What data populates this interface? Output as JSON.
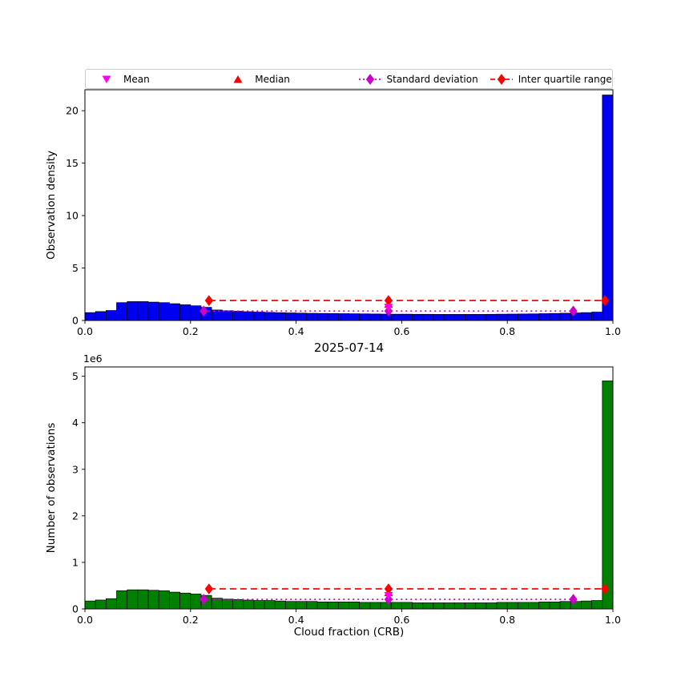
{
  "figure": {
    "title": "2025-07-14",
    "xlabel": "Cloud fraction (CRB)",
    "offset_text": "1e6"
  },
  "legend": {
    "items": [
      {
        "label": "Mean",
        "marker": "triangle-down",
        "color": "#ff00ff",
        "line": "none"
      },
      {
        "label": "Median",
        "marker": "triangle-up",
        "color": "#ff0000",
        "line": "none"
      },
      {
        "label": "Standard deviation",
        "marker": "diamond",
        "color": "#cc00cc",
        "line": "dotted"
      },
      {
        "label": "Inter quartile range",
        "marker": "diamond",
        "color": "#ff0000",
        "line": "dashed"
      }
    ]
  },
  "chart_data": [
    {
      "type": "bar",
      "ylabel": "Observation density",
      "bar_color": "#0000f0",
      "bar_edge_color": "#000000",
      "xlim": [
        0.0,
        1.0
      ],
      "ylim": [
        0,
        22
      ],
      "xticks": [
        0.0,
        0.2,
        0.4,
        0.6,
        0.8,
        1.0
      ],
      "xtick_labels": [
        "0.0",
        "0.2",
        "0.4",
        "0.6",
        "0.8",
        "1.0"
      ],
      "yticks": [
        0,
        5,
        10,
        15,
        20
      ],
      "ytick_labels": [
        "0",
        "5",
        "10",
        "15",
        "20"
      ],
      "bin_start": 0.0,
      "bin_width": 0.02,
      "values": [
        0.75,
        0.85,
        0.95,
        1.7,
        1.8,
        1.8,
        1.75,
        1.7,
        1.6,
        1.5,
        1.4,
        1.25,
        1.0,
        0.93,
        0.88,
        0.84,
        0.8,
        0.77,
        0.74,
        0.72,
        0.7,
        0.68,
        0.67,
        0.66,
        0.65,
        0.64,
        0.63,
        0.62,
        0.61,
        0.6,
        0.6,
        0.59,
        0.59,
        0.58,
        0.58,
        0.58,
        0.58,
        0.58,
        0.59,
        0.6,
        0.61,
        0.62,
        0.63,
        0.65,
        0.67,
        0.69,
        0.72,
        0.75,
        0.8,
        21.5
      ],
      "stats": {
        "mean": {
          "x": 0.575,
          "y": 1.25
        },
        "median": {
          "x": 0.575,
          "y": 1.55
        },
        "std": {
          "x1": 0.225,
          "x2": 0.925,
          "y": 0.9
        },
        "iqr": {
          "x1": 0.235,
          "x2": 0.985,
          "y": 1.9
        }
      }
    },
    {
      "type": "bar",
      "ylabel": "Number of observations",
      "y_unit": "1e6",
      "bar_color": "#008000",
      "bar_edge_color": "#000000",
      "xlim": [
        0.0,
        1.0
      ],
      "ylim": [
        0,
        5.2
      ],
      "xticks": [
        0.0,
        0.2,
        0.4,
        0.6,
        0.8,
        1.0
      ],
      "xtick_labels": [
        "0.0",
        "0.2",
        "0.4",
        "0.6",
        "0.8",
        "1.0"
      ],
      "yticks": [
        0,
        1,
        2,
        3,
        4,
        5
      ],
      "ytick_labels": [
        "0",
        "1",
        "2",
        "3",
        "4",
        "5"
      ],
      "bin_start": 0.0,
      "bin_width": 0.02,
      "values": [
        0.17,
        0.19,
        0.22,
        0.39,
        0.41,
        0.41,
        0.4,
        0.39,
        0.36,
        0.34,
        0.32,
        0.29,
        0.23,
        0.21,
        0.2,
        0.19,
        0.18,
        0.18,
        0.17,
        0.16,
        0.16,
        0.16,
        0.15,
        0.15,
        0.15,
        0.15,
        0.14,
        0.14,
        0.14,
        0.14,
        0.14,
        0.13,
        0.13,
        0.13,
        0.13,
        0.13,
        0.13,
        0.13,
        0.13,
        0.14,
        0.14,
        0.14,
        0.14,
        0.15,
        0.15,
        0.16,
        0.16,
        0.17,
        0.18,
        4.9
      ],
      "stats": {
        "mean": {
          "x": 0.575,
          "y": 0.285
        },
        "median": {
          "x": 0.575,
          "y": 0.35
        },
        "std": {
          "x1": 0.225,
          "x2": 0.925,
          "y": 0.205
        },
        "iqr": {
          "x1": 0.235,
          "x2": 0.985,
          "y": 0.43
        }
      }
    }
  ]
}
